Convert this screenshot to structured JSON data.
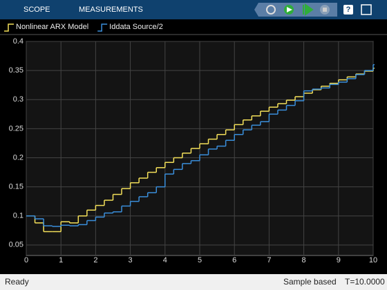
{
  "toolbar": {
    "tabs": [
      "SCOPE",
      "MEASUREMENTS"
    ]
  },
  "chart_data": {
    "type": "stairs",
    "x": [
      0,
      0.25,
      0.5,
      0.75,
      1,
      1.25,
      1.5,
      1.75,
      2,
      2.25,
      2.5,
      2.75,
      3,
      3.25,
      3.5,
      3.75,
      4,
      4.25,
      4.5,
      4.75,
      5,
      5.25,
      5.5,
      5.75,
      6,
      6.25,
      6.5,
      6.75,
      7,
      7.25,
      7.5,
      7.75,
      8,
      8.25,
      8.5,
      8.75,
      9,
      9.25,
      9.5,
      9.75,
      10
    ],
    "series": [
      {
        "name": "Nonlinear ARX Model",
        "color": "#f5e15a",
        "values": [
          0.1,
          0.088,
          0.073,
          0.073,
          0.09,
          0.088,
          0.1,
          0.11,
          0.118,
          0.127,
          0.137,
          0.147,
          0.157,
          0.165,
          0.175,
          0.183,
          0.192,
          0.2,
          0.208,
          0.216,
          0.224,
          0.232,
          0.24,
          0.248,
          0.257,
          0.265,
          0.272,
          0.28,
          0.287,
          0.293,
          0.299,
          0.305,
          0.311,
          0.317,
          0.323,
          0.328,
          0.334,
          0.339,
          0.344,
          0.349,
          0.354
        ]
      },
      {
        "name": "Iddata Source/2",
        "color": "#3a8fdc",
        "values": [
          0.1,
          0.095,
          0.083,
          0.082,
          0.084,
          0.083,
          0.085,
          0.092,
          0.098,
          0.105,
          0.107,
          0.117,
          0.125,
          0.133,
          0.14,
          0.15,
          0.172,
          0.18,
          0.19,
          0.195,
          0.205,
          0.215,
          0.22,
          0.23,
          0.24,
          0.248,
          0.256,
          0.262,
          0.275,
          0.282,
          0.29,
          0.298,
          0.315,
          0.318,
          0.32,
          0.326,
          0.33,
          0.336,
          0.343,
          0.35,
          0.36
        ]
      }
    ],
    "xlim": [
      0,
      10
    ],
    "xticks": [
      0,
      1,
      2,
      3,
      4,
      5,
      6,
      7,
      8,
      9,
      10
    ],
    "ylim": [
      0.032,
      0.4
    ],
    "yticks": [
      0.05,
      0.1,
      0.15,
      0.2,
      0.25,
      0.3,
      0.35,
      0.4
    ],
    "grid": true
  },
  "status_bar": {
    "left": "Ready",
    "mode": "Sample based",
    "time": "T=10.0000"
  }
}
